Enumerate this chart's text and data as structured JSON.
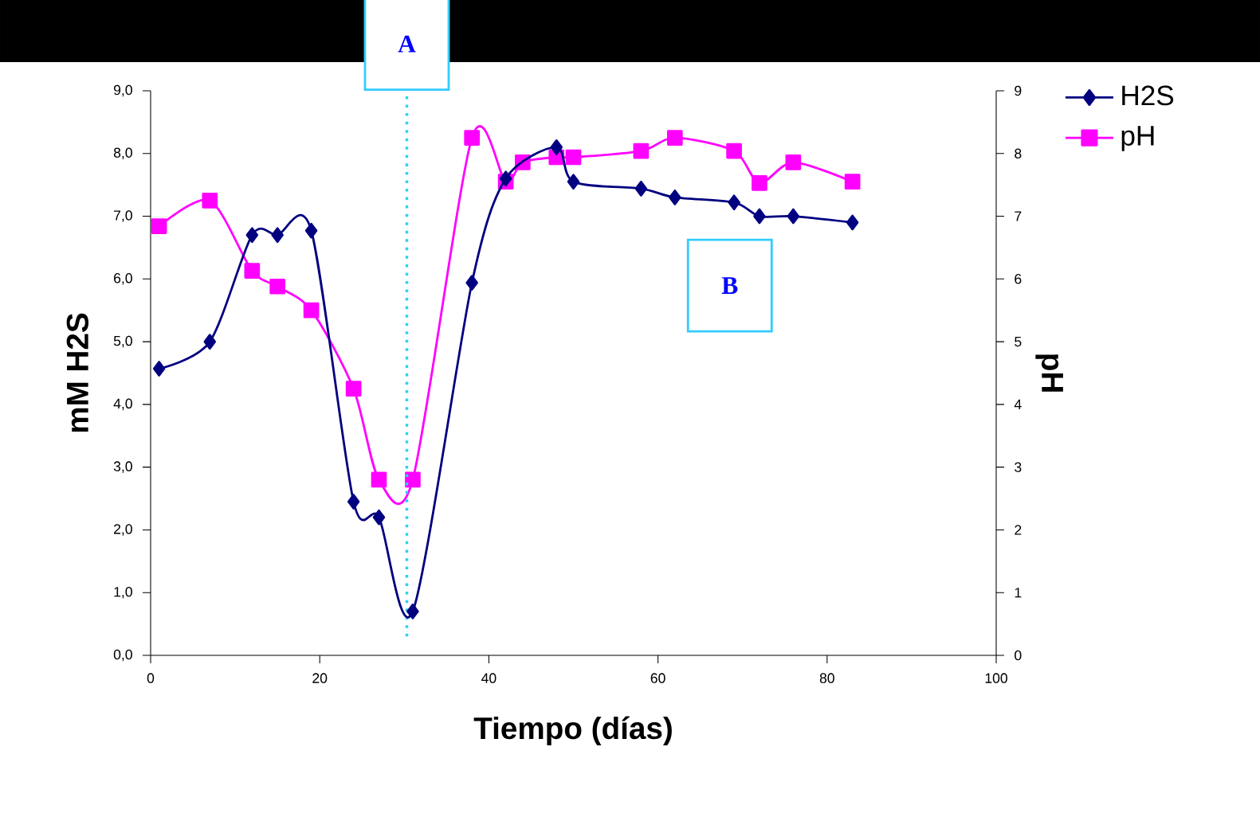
{
  "chart_data": {
    "type": "line",
    "xlabel": "Tiempo (días)",
    "ylabel": "mM H2S",
    "y2label": "pH",
    "xlim": [
      0,
      100
    ],
    "xticks": [
      0,
      20,
      40,
      60,
      80,
      100
    ],
    "ylim": [
      0,
      9
    ],
    "yticks": [
      {
        "value": 0,
        "label": "0,0"
      },
      {
        "value": 1,
        "label": "1,0"
      },
      {
        "value": 2,
        "label": "2,0"
      },
      {
        "value": 3,
        "label": "3,0"
      },
      {
        "value": 4,
        "label": "4,0"
      },
      {
        "value": 5,
        "label": "5,0"
      },
      {
        "value": 6,
        "label": "6,0"
      },
      {
        "value": 7,
        "label": "7,0"
      },
      {
        "value": 8,
        "label": "8,0"
      },
      {
        "value": 9,
        "label": "9,0"
      }
    ],
    "y2lim": [
      0,
      9
    ],
    "y2ticks": [
      0,
      1,
      2,
      3,
      4,
      5,
      6,
      7,
      8,
      9
    ],
    "legend": "top right",
    "series": [
      {
        "name": "H2S",
        "color": "#000080",
        "marker": "diamond",
        "x": [
          1,
          7,
          12,
          15,
          19,
          24,
          27,
          31,
          38,
          42,
          48,
          50,
          58,
          62,
          69,
          72,
          76,
          83
        ],
        "values": [
          4.57,
          5.0,
          6.7,
          6.7,
          6.77,
          2.45,
          2.2,
          0.7,
          5.94,
          7.6,
          8.1,
          7.55,
          7.44,
          7.3,
          7.22,
          7.0,
          7.0,
          6.9
        ]
      },
      {
        "name": "pH",
        "color": "#ff00ff",
        "marker": "square",
        "axis": "y2",
        "x": [
          1,
          7,
          12,
          15,
          19,
          24,
          27,
          31,
          38,
          42,
          44,
          48,
          50,
          58,
          62,
          69,
          72,
          76,
          83
        ],
        "values": [
          6.84,
          7.25,
          6.13,
          5.88,
          5.5,
          4.25,
          2.8,
          2.8,
          8.25,
          7.55,
          7.86,
          7.94,
          7.94,
          8.04,
          8.25,
          8.04,
          7.53,
          7.86,
          7.55
        ]
      }
    ],
    "ref_lines": [
      {
        "axis": "x",
        "value": 30.3,
        "color": "#33ccff",
        "line_style": "dotted"
      }
    ],
    "annotations": [
      {
        "text": "A",
        "x": 30.3,
        "y": 9.0
      },
      "B"
    ]
  }
}
